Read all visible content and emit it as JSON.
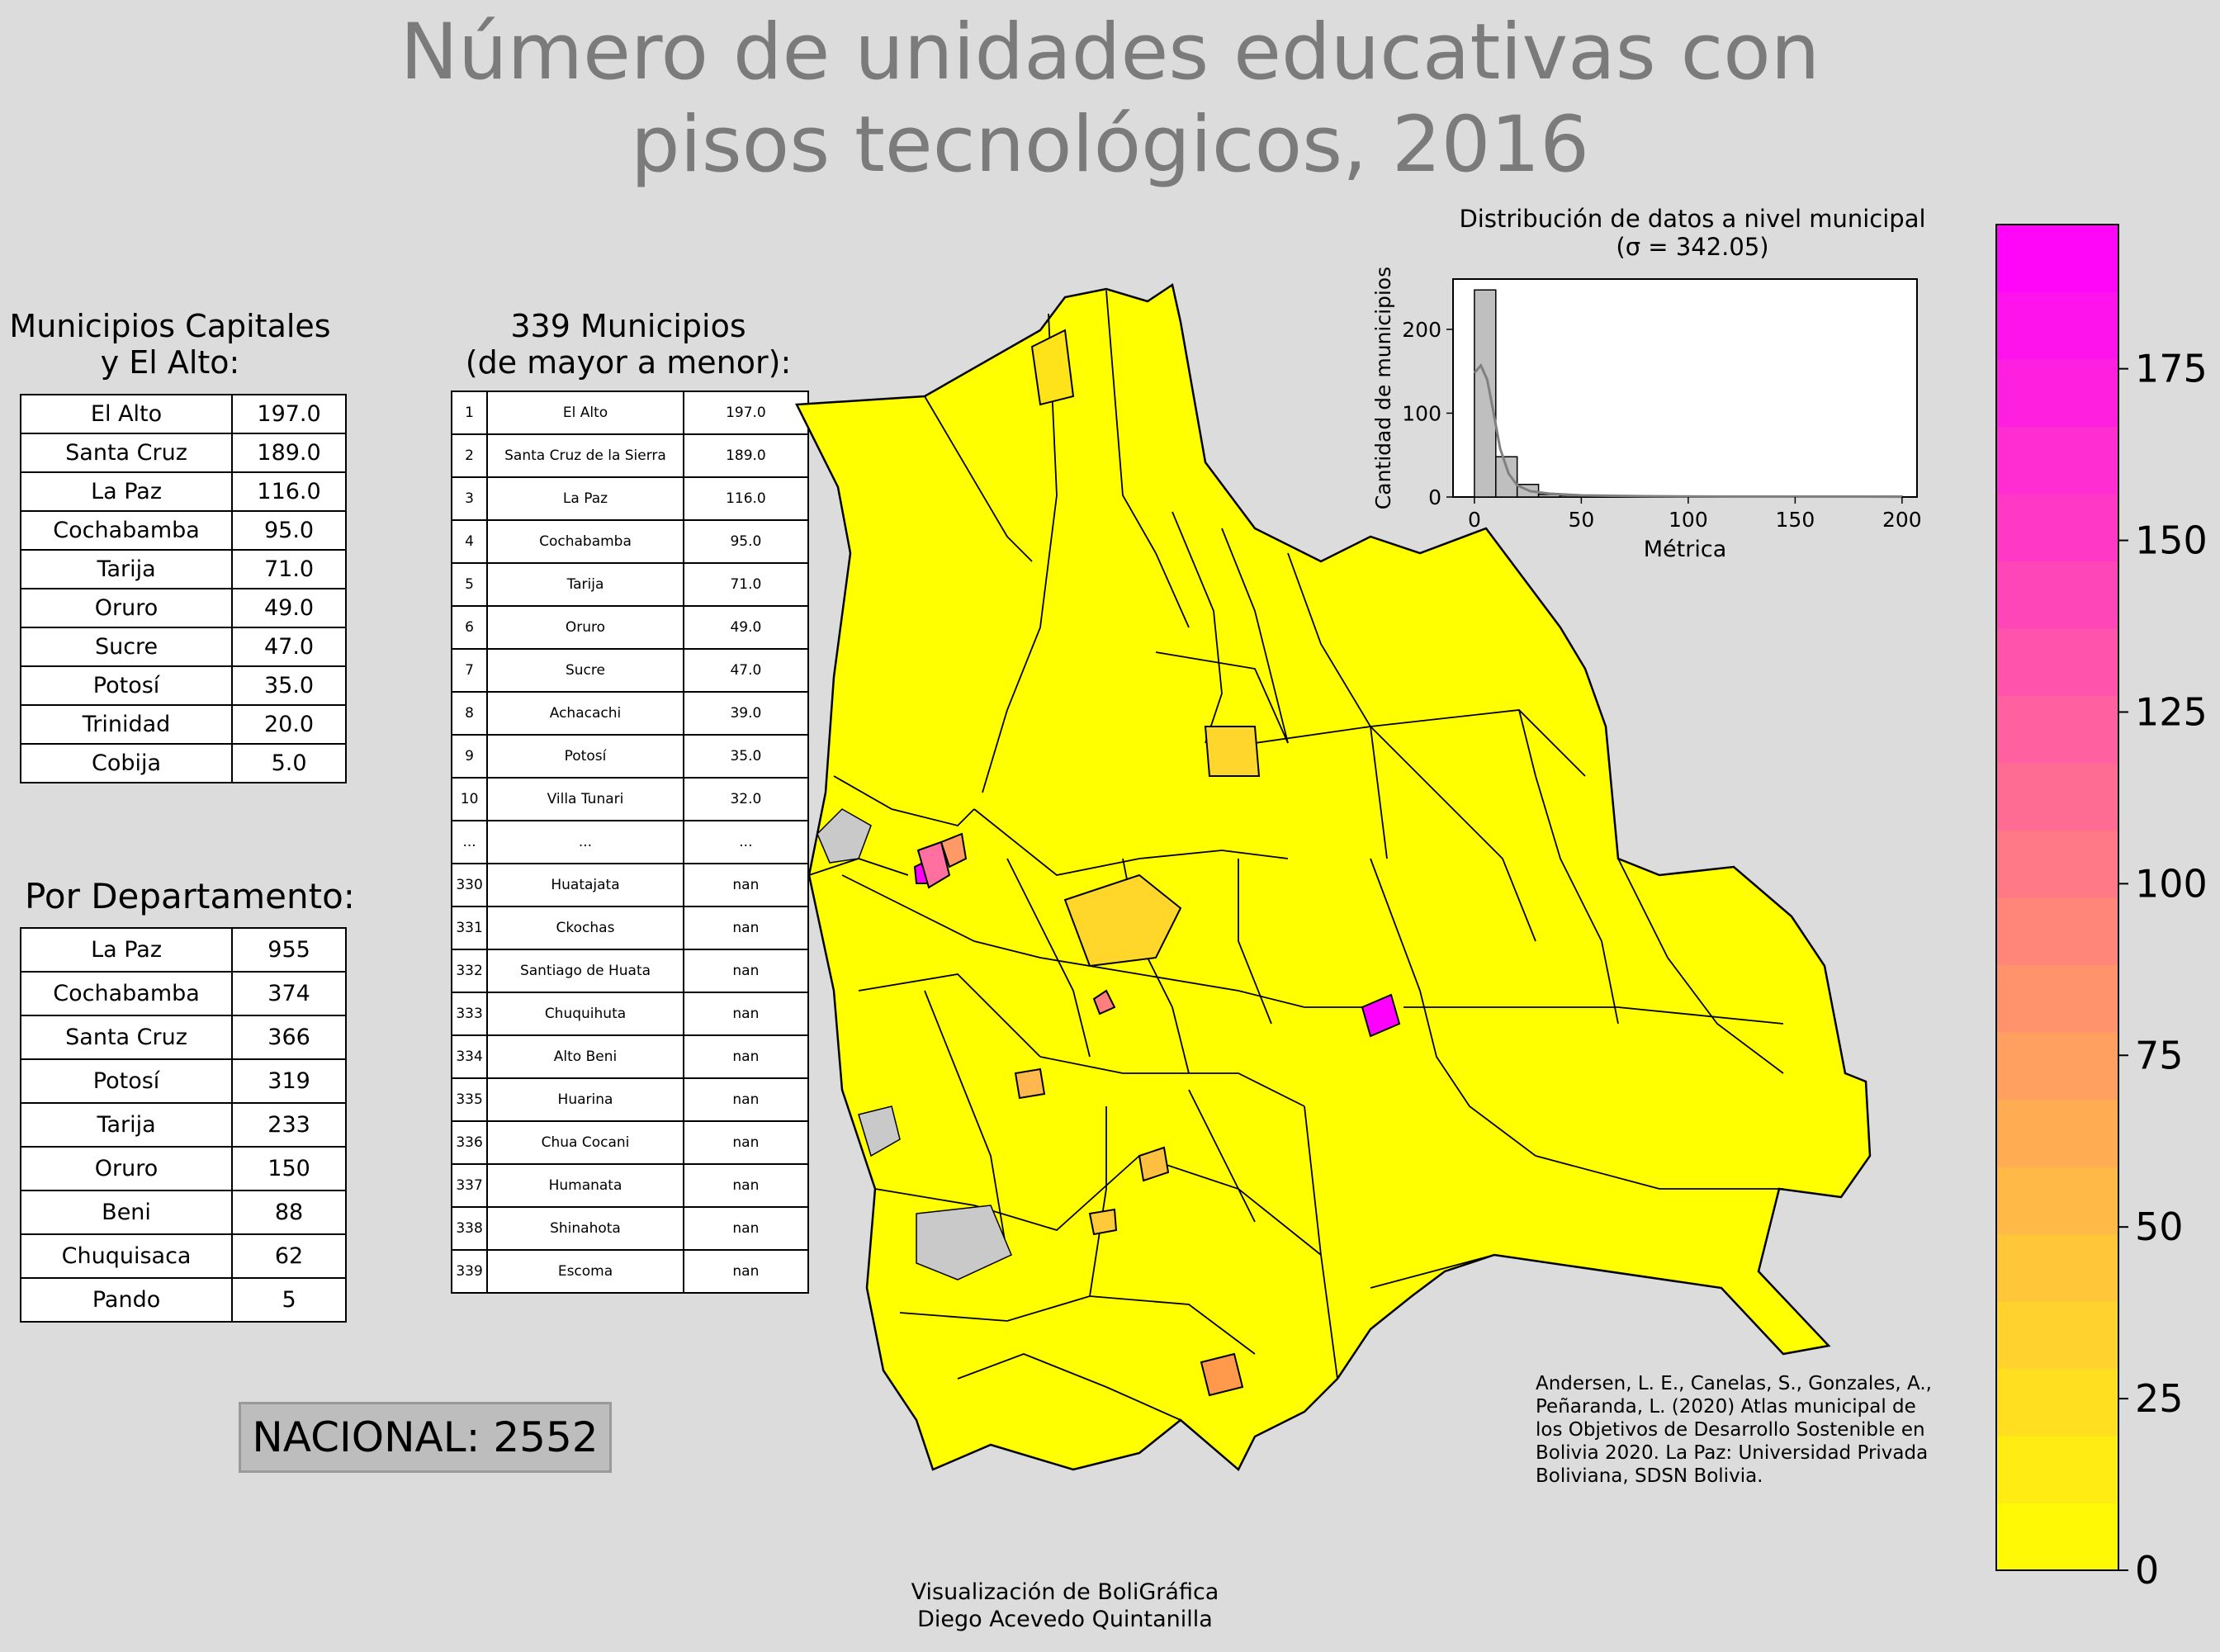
{
  "title_line1": "Número de unidades educativas con",
  "title_line2": "pisos tecnológicos, 2016",
  "capitals": {
    "title_line1": "Municipios Capitales",
    "title_line2": "y El Alto:",
    "rows": [
      {
        "name": "El Alto",
        "value": "197.0"
      },
      {
        "name": "Santa Cruz",
        "value": "189.0"
      },
      {
        "name": "La Paz",
        "value": "116.0"
      },
      {
        "name": "Cochabamba",
        "value": "95.0"
      },
      {
        "name": "Tarija",
        "value": "71.0"
      },
      {
        "name": "Oruro",
        "value": "49.0"
      },
      {
        "name": "Sucre",
        "value": "47.0"
      },
      {
        "name": "Potosí",
        "value": "35.0"
      },
      {
        "name": "Trinidad",
        "value": "20.0"
      },
      {
        "name": "Cobija",
        "value": "5.0"
      }
    ]
  },
  "departments": {
    "title": "Por Departamento:",
    "rows": [
      {
        "name": "La Paz",
        "value": "955"
      },
      {
        "name": "Cochabamba",
        "value": "374"
      },
      {
        "name": "Santa Cruz",
        "value": "366"
      },
      {
        "name": "Potosí",
        "value": "319"
      },
      {
        "name": "Tarija",
        "value": "233"
      },
      {
        "name": "Oruro",
        "value": "150"
      },
      {
        "name": "Beni",
        "value": "88"
      },
      {
        "name": "Chuquisaca",
        "value": "62"
      },
      {
        "name": "Pando",
        "value": "5"
      }
    ]
  },
  "municipalities": {
    "title_line1": "339 Municipios",
    "title_line2": "(de mayor a menor):",
    "rows": [
      {
        "rank": "1",
        "name": "El Alto",
        "value": "197.0"
      },
      {
        "rank": "2",
        "name": "Santa Cruz de la Sierra",
        "value": "189.0"
      },
      {
        "rank": "3",
        "name": "La Paz",
        "value": "116.0"
      },
      {
        "rank": "4",
        "name": "Cochabamba",
        "value": "95.0"
      },
      {
        "rank": "5",
        "name": "Tarija",
        "value": "71.0"
      },
      {
        "rank": "6",
        "name": "Oruro",
        "value": "49.0"
      },
      {
        "rank": "7",
        "name": "Sucre",
        "value": "47.0"
      },
      {
        "rank": "8",
        "name": "Achacachi",
        "value": "39.0"
      },
      {
        "rank": "9",
        "name": "Potosí",
        "value": "35.0"
      },
      {
        "rank": "10",
        "name": "Villa Tunari",
        "value": "32.0"
      },
      {
        "rank": "...",
        "name": "...",
        "value": "..."
      },
      {
        "rank": "330",
        "name": "Huatajata",
        "value": "nan"
      },
      {
        "rank": "331",
        "name": "Ckochas",
        "value": "nan"
      },
      {
        "rank": "332",
        "name": "Santiago de Huata",
        "value": "nan"
      },
      {
        "rank": "333",
        "name": "Chuquihuta",
        "value": "nan"
      },
      {
        "rank": "334",
        "name": "Alto Beni",
        "value": "nan"
      },
      {
        "rank": "335",
        "name": "Huarina",
        "value": "nan"
      },
      {
        "rank": "336",
        "name": "Chua Cocani",
        "value": "nan"
      },
      {
        "rank": "337",
        "name": "Humanata",
        "value": "nan"
      },
      {
        "rank": "338",
        "name": "Shinahota",
        "value": "nan"
      },
      {
        "rank": "339",
        "name": "Escoma",
        "value": "nan"
      }
    ]
  },
  "national": "NACIONAL: 2552",
  "citation": "Andersen, L. E., Canelas, S., Gonzales, A., Peñaranda, L. (2020) Atlas municipal de los Objetivos de Desarrollo Sostenible en Bolivia 2020. La Paz: Universidad Privada Boliviana, SDSN Bolivia.",
  "credit_line1": "Visualización de BoliGráfica",
  "credit_line2": "Diego Acevedo Quintanilla",
  "colors": {
    "background": "#dcdcdc",
    "low": "#ffff00",
    "mid": "#ff8080",
    "high": "#ff00ff",
    "border": "#000000"
  },
  "colorbar": {
    "min": 0,
    "max": 196,
    "ticks": [
      "0",
      "25",
      "50",
      "75",
      "100",
      "125",
      "150",
      "175"
    ]
  },
  "chart_data": {
    "type": "bar",
    "title_line1": "Distribución de datos a nivel municipal",
    "title_line2": "(σ = 342.05)",
    "xlabel": "Métrica",
    "ylabel": "Cantidad de municipios",
    "xlim": [
      -10,
      207
    ],
    "ylim": [
      0,
      260
    ],
    "xticks": [
      "0",
      "50",
      "100",
      "150",
      "200"
    ],
    "yticks": [
      "0",
      "100",
      "200"
    ],
    "bin_width": 10,
    "bins": [
      {
        "start": 0,
        "end": 10,
        "count": 247
      },
      {
        "start": 10,
        "end": 20,
        "count": 48
      },
      {
        "start": 20,
        "end": 30,
        "count": 15
      },
      {
        "start": 30,
        "end": 40,
        "count": 3
      },
      {
        "start": 40,
        "end": 50,
        "count": 2
      },
      {
        "start": 50,
        "end": 60,
        "count": 1
      },
      {
        "start": 60,
        "end": 70,
        "count": 0
      },
      {
        "start": 70,
        "end": 80,
        "count": 1
      },
      {
        "start": 80,
        "end": 90,
        "count": 0
      },
      {
        "start": 90,
        "end": 100,
        "count": 1
      },
      {
        "start": 110,
        "end": 120,
        "count": 1
      },
      {
        "start": 180,
        "end": 190,
        "count": 1
      },
      {
        "start": 190,
        "end": 200,
        "count": 1
      }
    ],
    "kde": [
      [
        0,
        148
      ],
      [
        3,
        157
      ],
      [
        6,
        140
      ],
      [
        9,
        100
      ],
      [
        12,
        58
      ],
      [
        16,
        28
      ],
      [
        20,
        14
      ],
      [
        26,
        7
      ],
      [
        35,
        4
      ],
      [
        50,
        2
      ],
      [
        80,
        1
      ],
      [
        120,
        0.5
      ],
      [
        180,
        0.5
      ],
      [
        200,
        0.3
      ]
    ]
  }
}
